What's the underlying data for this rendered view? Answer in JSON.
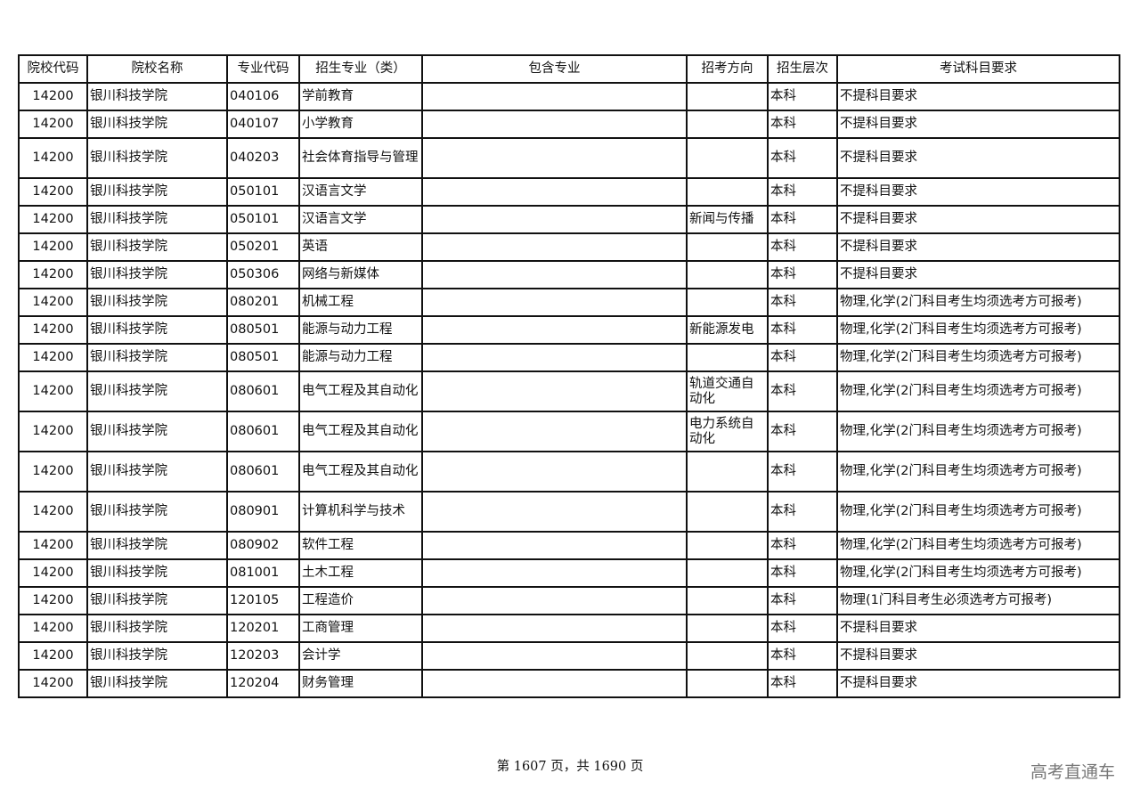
{
  "headers": [
    "院校代码",
    "院校名称",
    "专业代码",
    "招生专业（类）",
    "包含专业",
    "招考方向",
    "招生层次",
    "考试科目要求"
  ],
  "rows": [
    [
      "14200",
      "银川科技学院",
      "040106",
      "学前教育",
      "",
      "",
      "本科",
      "不提科目要求"
    ],
    [
      "14200",
      "银川科技学院",
      "040107",
      "小学教育",
      "",
      "",
      "本科",
      "不提科目要求"
    ],
    [
      "14200",
      "银川科技学院",
      "040203",
      "社会体育指导与管理",
      "",
      "",
      "本科",
      "不提科目要求"
    ],
    [
      "14200",
      "银川科技学院",
      "050101",
      "汉语言文学",
      "",
      "",
      "本科",
      "不提科目要求"
    ],
    [
      "14200",
      "银川科技学院",
      "050101",
      "汉语言文学",
      "",
      "新闻与传播",
      "本科",
      "不提科目要求"
    ],
    [
      "14200",
      "银川科技学院",
      "050201",
      "英语",
      "",
      "",
      "本科",
      "不提科目要求"
    ],
    [
      "14200",
      "银川科技学院",
      "050306",
      "网络与新媒体",
      "",
      "",
      "本科",
      "不提科目要求"
    ],
    [
      "14200",
      "银川科技学院",
      "080201",
      "机械工程",
      "",
      "",
      "本科",
      "物理,化学(2门科目考生均须选考方可报考)"
    ],
    [
      "14200",
      "银川科技学院",
      "080501",
      "能源与动力工程",
      "",
      "新能源发电",
      "本科",
      "物理,化学(2门科目考生均须选考方可报考)"
    ],
    [
      "14200",
      "银川科技学院",
      "080501",
      "能源与动力工程",
      "",
      "",
      "本科",
      "物理,化学(2门科目考生均须选考方可报考)"
    ],
    [
      "14200",
      "银川科技学院",
      "080601",
      "电气工程及其自动化",
      "",
      "轨道交通自动化",
      "本科",
      "物理,化学(2门科目考生均须选考方可报考)"
    ],
    [
      "14200",
      "银川科技学院",
      "080601",
      "电气工程及其自动化",
      "",
      "电力系统自动化",
      "本科",
      "物理,化学(2门科目考生均须选考方可报考)"
    ],
    [
      "14200",
      "银川科技学院",
      "080601",
      "电气工程及其自动化",
      "",
      "",
      "本科",
      "物理,化学(2门科目考生均须选考方可报考)"
    ],
    [
      "14200",
      "银川科技学院",
      "080901",
      "计算机科学与技术",
      "",
      "",
      "本科",
      "物理,化学(2门科目考生均须选考方可报考)"
    ],
    [
      "14200",
      "银川科技学院",
      "080902",
      "软件工程",
      "",
      "",
      "本科",
      "物理,化学(2门科目考生均须选考方可报考)"
    ],
    [
      "14200",
      "银川科技学院",
      "081001",
      "土木工程",
      "",
      "",
      "本科",
      "物理,化学(2门科目考生均须选考方可报考)"
    ],
    [
      "14200",
      "银川科技学院",
      "120105",
      "工程造价",
      "",
      "",
      "本科",
      "物理(1门科目考生必须选考方可报考)"
    ],
    [
      "14200",
      "银川科技学院",
      "120201",
      "工商管理",
      "",
      "",
      "本科",
      "不提科目要求"
    ],
    [
      "14200",
      "银川科技学院",
      "120203",
      "会计学",
      "",
      "",
      "本科",
      "不提科目要求"
    ],
    [
      "14200",
      "银川科技学院",
      "120204",
      "财务管理",
      "",
      "",
      "本科",
      "不提科目要求"
    ]
  ],
  "footer": "第 1607 页，共 1690 页",
  "watermark": "高考直通车"
}
